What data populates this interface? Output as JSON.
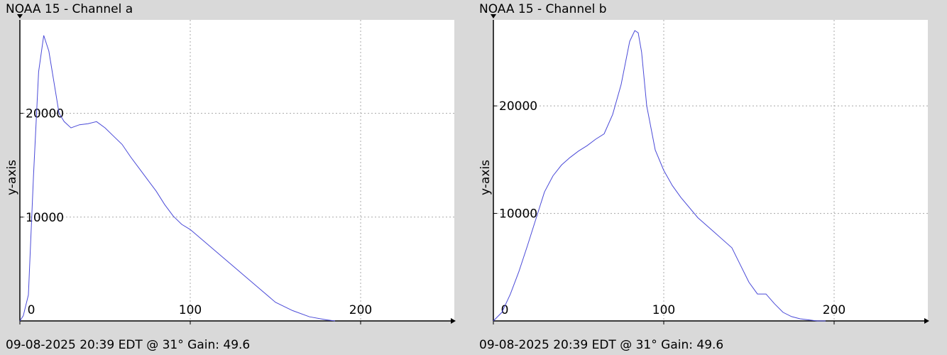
{
  "panels": [
    {
      "title": "NOAA 15 - Channel a",
      "footer": "09-08-2025 20:39 EDT @ 31° Gain: 49.6"
    },
    {
      "title": "NOAA 15 - Channel b",
      "footer": "09-08-2025 20:39 EDT @ 31° Gain: 49.6"
    }
  ],
  "chart_data": [
    {
      "type": "line",
      "title": "NOAA 15 - Channel a",
      "xlabel": "",
      "ylabel": "y-axis",
      "xlim": [
        0,
        255
      ],
      "ylim": [
        0,
        29000
      ],
      "x_ticks": [
        0,
        100,
        200
      ],
      "y_ticks": [
        10000,
        20000
      ],
      "grid": true,
      "series": [
        {
          "color": "#4a4ad8",
          "x": [
            0,
            2,
            5,
            8,
            11,
            14,
            17,
            20,
            23,
            26,
            30,
            35,
            40,
            45,
            50,
            55,
            60,
            65,
            70,
            75,
            80,
            85,
            90,
            95,
            100,
            110,
            120,
            130,
            140,
            150,
            160,
            170,
            180,
            185
          ],
          "y": [
            0,
            500,
            2500,
            14000,
            24000,
            27500,
            26000,
            23000,
            20000,
            19200,
            18600,
            18900,
            19000,
            19200,
            18600,
            17800,
            17000,
            15800,
            14700,
            13600,
            12500,
            11200,
            10100,
            9300,
            8800,
            7400,
            6000,
            4600,
            3200,
            1800,
            1000,
            400,
            100,
            0
          ]
        }
      ]
    },
    {
      "type": "line",
      "title": "NOAA 15 - Channel b",
      "xlabel": "",
      "ylabel": "y-axis",
      "xlim": [
        0,
        255
      ],
      "ylim": [
        0,
        28000
      ],
      "x_ticks": [
        0,
        100,
        200
      ],
      "y_ticks": [
        10000,
        20000
      ],
      "grid": true,
      "series": [
        {
          "color": "#4a4ad8",
          "x": [
            0,
            5,
            10,
            15,
            20,
            25,
            30,
            35,
            40,
            45,
            50,
            55,
            60,
            65,
            70,
            75,
            80,
            83,
            85,
            87,
            90,
            95,
            100,
            105,
            110,
            120,
            130,
            140,
            145,
            150,
            155,
            160,
            165,
            170,
            175,
            180,
            185,
            190,
            195
          ],
          "y": [
            0,
            800,
            2500,
            4600,
            7000,
            9500,
            12000,
            13500,
            14500,
            15200,
            15800,
            16300,
            16900,
            17400,
            19200,
            22000,
            26000,
            27000,
            26800,
            25000,
            20000,
            15900,
            14000,
            12600,
            11500,
            9600,
            8200,
            6800,
            5200,
            3600,
            2500,
            2500,
            1600,
            800,
            400,
            200,
            100,
            0,
            0
          ]
        }
      ]
    }
  ]
}
